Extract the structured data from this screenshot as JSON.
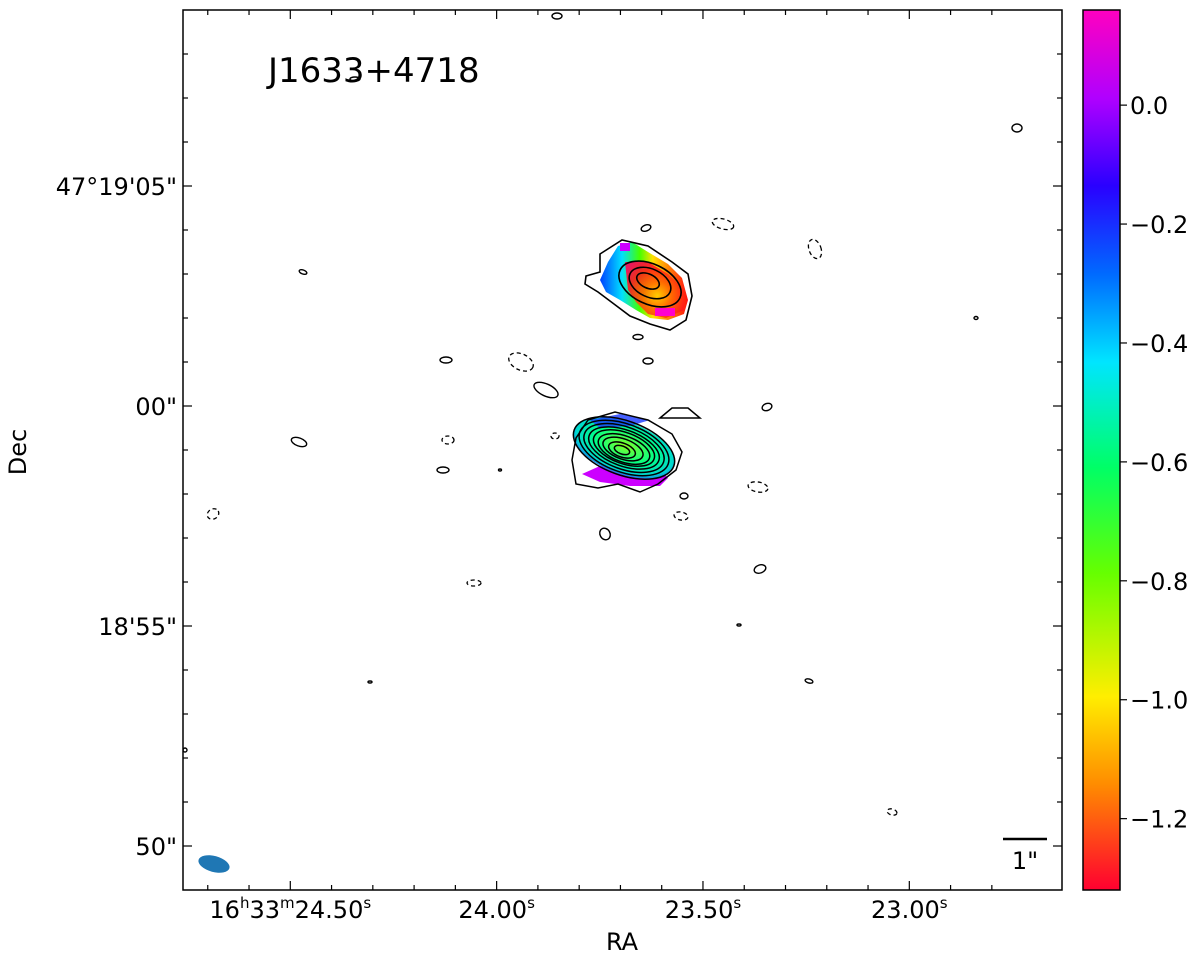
{
  "chart_data": {
    "type": "heatmap",
    "title": "J1633+4718",
    "xlabel": "RA",
    "ylabel": "Dec",
    "x_ticks": [
      {
        "h": "16",
        "m": "33",
        "s": "24.50",
        "sec": 24.5
      },
      {
        "s": "24.00",
        "sec": 24.0
      },
      {
        "s": "23.50",
        "sec": 23.5
      },
      {
        "s": "23.00",
        "sec": 23.0
      }
    ],
    "y_ticks": [
      {
        "label": "47°19'05\"",
        "arcsec": 5
      },
      {
        "label": "00\"",
        "arcsec": 0
      },
      {
        "label": "18'55\"",
        "arcsec": -5
      },
      {
        "label": "50\"",
        "arcsec": -10
      }
    ],
    "xlim_sec": [
      24.76,
      22.63
    ],
    "ylim_arcsec": [
      -11.0,
      9.0
    ],
    "colorbar": {
      "colormap": "gist_rainbow",
      "range": [
        -1.32,
        0.16
      ],
      "ticks": [
        {
          "label": "0.0",
          "value": 0.0
        },
        {
          "label": "−0.2",
          "value": -0.2
        },
        {
          "label": "−0.4",
          "value": -0.4
        },
        {
          "label": "−0.6",
          "value": -0.6
        },
        {
          "label": "−0.8",
          "value": -0.8
        },
        {
          "label": "−1.0",
          "value": -1.0
        },
        {
          "label": "−1.2",
          "value": -1.2
        }
      ]
    },
    "scale_bar": {
      "label": "1\"",
      "arcsec": 1
    },
    "components": [
      {
        "name": "northern component",
        "ra_sec": 23.51,
        "dec_arcsec": 2.8,
        "contour_levels": 4,
        "spectral_index_range": [
          -1.3,
          -0.2
        ]
      },
      {
        "name": "southern component",
        "ra_sec": 23.59,
        "dec_arcsec": -1.0,
        "contour_levels": 10,
        "spectral_index_range": [
          -0.7,
          0.0
        ]
      }
    ],
    "beam": {
      "color": "#1f77b4"
    }
  }
}
